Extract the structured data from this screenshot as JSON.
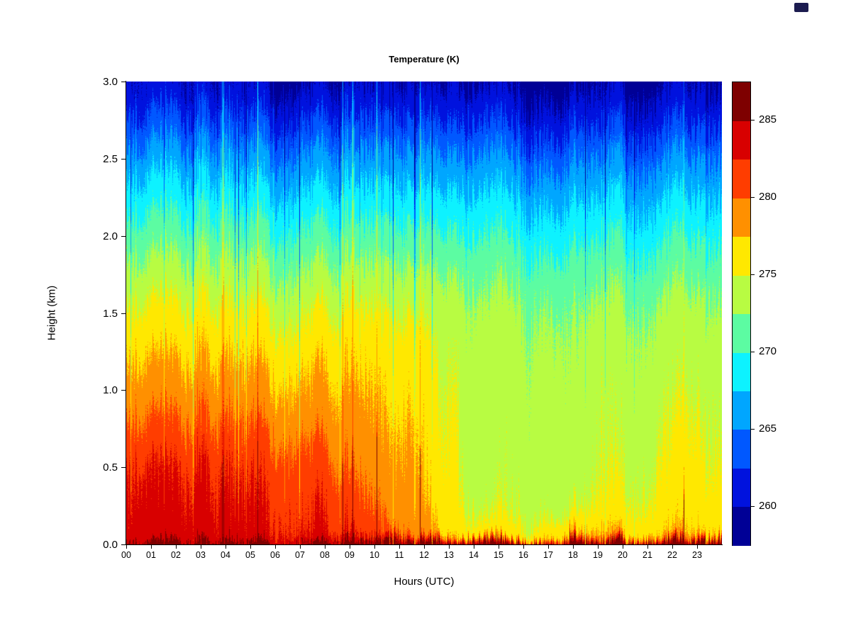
{
  "icons": {
    "window_icon_color": "#1c1c50"
  },
  "chart_data": {
    "type": "heatmap",
    "title": "Temperature (K)",
    "xlabel": "Hours (UTC)",
    "ylabel": "Height (km)",
    "x_ticks": [
      "00",
      "01",
      "02",
      "03",
      "04",
      "05",
      "06",
      "07",
      "08",
      "09",
      "10",
      "11",
      "12",
      "13",
      "14",
      "15",
      "16",
      "17",
      "18",
      "19",
      "20",
      "21",
      "22",
      "23"
    ],
    "x_range": [
      0,
      24
    ],
    "y_ticks": [
      "0.0",
      "0.5",
      "1.0",
      "1.5",
      "2.0",
      "2.5",
      "3.0"
    ],
    "y_tick_values": [
      0,
      0.5,
      1.0,
      1.5,
      2.0,
      2.5,
      3.0
    ],
    "y_range": [
      0,
      3
    ],
    "grid_on": false,
    "colorbar": {
      "range": [
        257.5,
        287.5
      ],
      "ticks": [
        260,
        265,
        270,
        275,
        280,
        285
      ],
      "colors": [
        "#000096",
        "#0012DE",
        "#0058FF",
        "#00A6FF",
        "#0DF2FF",
        "#5CFCA2",
        "#B8FC42",
        "#FFE800",
        "#FF9000",
        "#FF3D00",
        "#D80000",
        "#7E0000"
      ]
    },
    "grid": {
      "hours": [
        0,
        1,
        2,
        3,
        4,
        5,
        6,
        7,
        8,
        9,
        10,
        11,
        12,
        13,
        14,
        15,
        16,
        17,
        18,
        19,
        20,
        21,
        22,
        23
      ],
      "heights_km": [
        0.0,
        0.05,
        0.1,
        0.25,
        0.5,
        0.75,
        1.0,
        1.25,
        1.5,
        1.75,
        2.0,
        2.25,
        2.5,
        2.75,
        3.0
      ],
      "temps_K": [
        [
          286.0,
          283.6,
          283.3,
          283.0,
          282.6,
          280.6,
          278.8,
          277.2,
          275.6,
          273.6,
          271.4,
          269.0,
          266.4,
          263.2,
          260.3
        ],
        [
          286.0,
          283.6,
          283.3,
          283.0,
          282.5,
          280.5,
          278.7,
          277.1,
          275.6,
          273.5,
          271.3,
          268.9,
          266.3,
          263.1,
          260.2
        ],
        [
          286.0,
          283.7,
          283.4,
          283.0,
          282.4,
          280.4,
          278.7,
          277.1,
          275.5,
          273.5,
          271.2,
          268.8,
          266.2,
          263.0,
          260.1
        ],
        [
          285.9,
          283.6,
          283.3,
          282.9,
          282.3,
          280.4,
          278.6,
          277.0,
          275.5,
          273.4,
          271.2,
          268.7,
          266.1,
          262.9,
          260.1
        ],
        [
          285.9,
          283.5,
          283.2,
          282.9,
          282.2,
          280.3,
          278.6,
          277.0,
          275.4,
          273.4,
          271.1,
          268.6,
          266.0,
          262.8,
          260.0
        ],
        [
          285.9,
          283.5,
          283.2,
          282.8,
          282.1,
          280.2,
          278.5,
          276.9,
          275.4,
          273.3,
          271.0,
          268.5,
          265.9,
          262.7,
          259.9
        ],
        [
          285.8,
          283.4,
          283.1,
          282.7,
          281.9,
          280.0,
          278.4,
          276.9,
          275.3,
          273.2,
          270.9,
          268.4,
          265.8,
          262.6,
          259.8
        ],
        [
          285.8,
          283.3,
          283.0,
          282.5,
          281.6,
          279.7,
          278.3,
          276.8,
          275.2,
          273.1,
          270.8,
          268.3,
          265.7,
          262.5,
          259.7
        ],
        [
          285.8,
          283.1,
          282.7,
          282.1,
          280.9,
          279.2,
          278.0,
          276.7,
          275.1,
          273.0,
          270.7,
          268.2,
          265.6,
          262.4,
          259.6
        ],
        [
          286.0,
          282.6,
          282.0,
          280.8,
          279.4,
          278.2,
          277.4,
          276.6,
          275.0,
          272.9,
          270.6,
          268.1,
          265.5,
          262.3,
          259.6
        ],
        [
          286.0,
          281.4,
          280.8,
          279.6,
          278.6,
          277.8,
          277.2,
          276.4,
          274.9,
          272.8,
          270.5,
          268.0,
          265.4,
          262.2,
          259.5
        ],
        [
          286.0,
          280.2,
          279.6,
          278.8,
          278.2,
          277.6,
          277.0,
          276.2,
          274.8,
          272.7,
          270.4,
          267.9,
          265.3,
          262.1,
          259.5
        ],
        [
          286.0,
          278.9,
          278.3,
          277.6,
          277.0,
          276.6,
          276.2,
          275.6,
          274.4,
          272.5,
          270.3,
          267.8,
          265.3,
          262.1,
          259.4
        ],
        [
          286.0,
          277.0,
          276.4,
          275.6,
          275.0,
          274.7,
          274.4,
          274.1,
          273.6,
          272.2,
          270.1,
          267.8,
          265.3,
          262.2,
          259.5
        ],
        [
          286.2,
          276.4,
          275.8,
          274.6,
          274.2,
          274.0,
          273.9,
          273.7,
          273.2,
          272.0,
          270.0,
          267.8,
          265.3,
          262.2,
          259.5
        ],
        [
          286.2,
          276.2,
          275.6,
          274.5,
          274.1,
          274.0,
          273.8,
          273.6,
          273.1,
          271.9,
          269.9,
          267.7,
          265.2,
          262.1,
          259.4
        ],
        [
          286.3,
          276.2,
          275.6,
          274.5,
          274.1,
          273.9,
          273.8,
          273.5,
          273.0,
          271.8,
          269.8,
          267.6,
          265.1,
          262.0,
          259.4
        ],
        [
          286.5,
          278.0,
          276.4,
          274.7,
          274.2,
          274.0,
          273.8,
          273.5,
          273.0,
          271.7,
          269.7,
          267.5,
          265.0,
          261.9,
          259.3
        ],
        [
          286.6,
          278.4,
          276.8,
          274.9,
          274.3,
          274.1,
          273.9,
          273.5,
          272.9,
          271.6,
          269.6,
          267.4,
          264.9,
          261.8,
          259.3
        ],
        [
          286.6,
          278.2,
          276.8,
          275.0,
          274.4,
          274.1,
          273.9,
          273.5,
          272.9,
          271.5,
          269.5,
          267.3,
          264.8,
          261.7,
          259.2
        ],
        [
          286.5,
          277.6,
          276.6,
          275.4,
          274.6,
          274.2,
          273.9,
          273.5,
          272.8,
          271.4,
          269.4,
          267.2,
          264.7,
          261.6,
          259.2
        ],
        [
          286.5,
          277.4,
          276.6,
          275.6,
          274.9,
          274.4,
          274.0,
          273.5,
          272.8,
          271.3,
          269.3,
          267.1,
          264.6,
          261.5,
          259.1
        ],
        [
          286.4,
          277.3,
          276.6,
          275.7,
          275.0,
          274.5,
          274.0,
          273.5,
          272.7,
          271.2,
          269.2,
          267.0,
          264.5,
          261.4,
          259.1
        ],
        [
          286.4,
          277.3,
          276.6,
          275.8,
          275.1,
          274.6,
          274.1,
          273.5,
          272.7,
          271.1,
          269.1,
          266.9,
          264.4,
          261.3,
          259.0
        ]
      ]
    },
    "noise": {
      "seed": 42,
      "col_jitter_km": 0.1,
      "smooth_jitter_km": 0.09,
      "smooth_temp_K": 0.8,
      "col_temp_K": 0.5,
      "pixel_temp_K": 0.35,
      "spike_prob": 0.05,
      "spike_km": 0.6
    }
  }
}
